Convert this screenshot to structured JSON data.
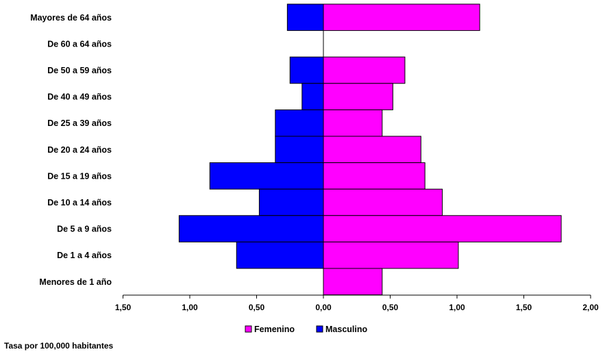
{
  "chart_data": {
    "type": "bar",
    "orientation": "horizontal",
    "layout": "population-pyramid",
    "categories": [
      "Mayores de 64 años",
      "De 60 a 64 años",
      "De 50 a 59 años",
      "De 40 a 49 años",
      "De 25 a 39 años",
      "De 20 a 24 años",
      "De 15 a 19 años",
      "De 10 a 14 años",
      "De 5 a 9 años",
      "De 1 a 4 años",
      "Menores de 1 año"
    ],
    "series": [
      {
        "name": "Femenino",
        "color": "#ff00ff",
        "values": [
          1.17,
          0,
          0.61,
          0.52,
          0.44,
          0.73,
          0.76,
          0.89,
          1.78,
          1.01,
          0.44
        ]
      },
      {
        "name": "Masculino",
        "color": "#0000ff",
        "values": [
          0.27,
          0,
          0.25,
          0.16,
          0.36,
          0.36,
          0.85,
          0.48,
          1.08,
          0.65,
          0
        ]
      }
    ],
    "x_ticks": [
      "1,50",
      "1,00",
      "0,50",
      "0,00",
      "0,50",
      "1,00",
      "1,50",
      "2,00"
    ],
    "xlim": [
      -1.5,
      2.0
    ],
    "legend_position": "bottom",
    "grid": false
  },
  "footnote": "Tasa por 100,000 habitantes"
}
